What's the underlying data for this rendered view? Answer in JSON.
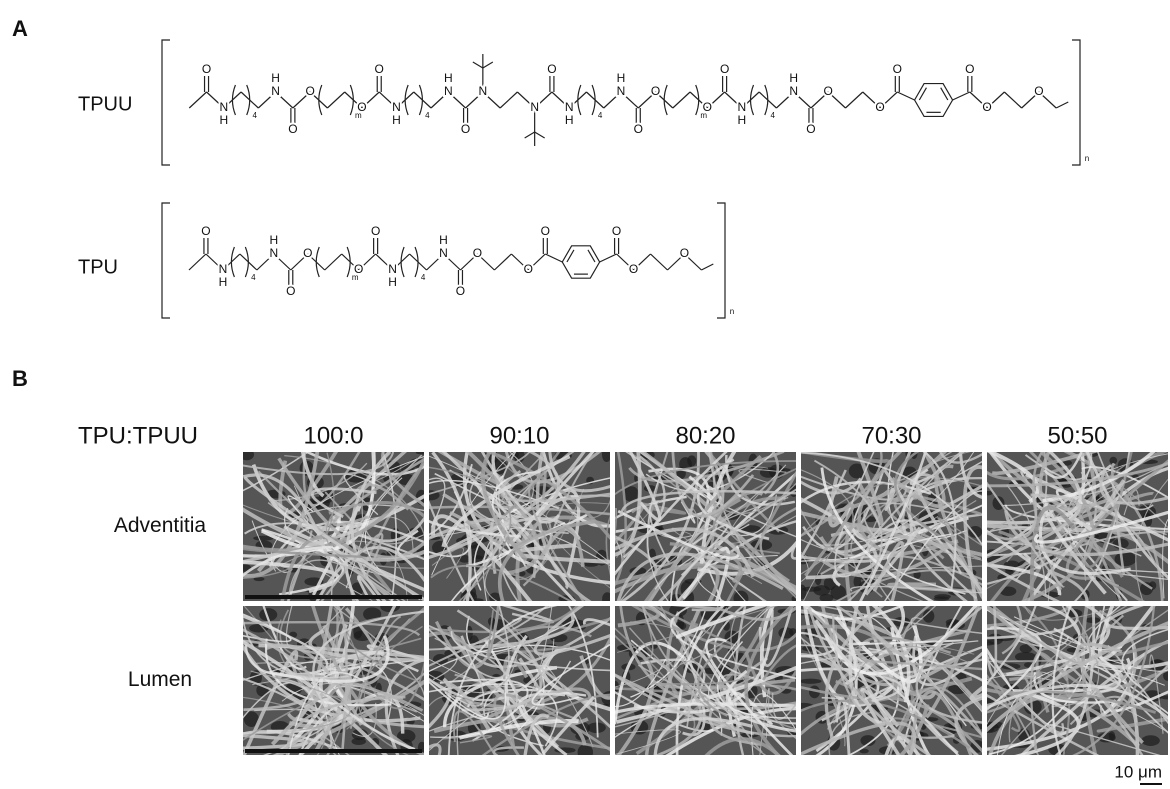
{
  "panel_a": {
    "label": "A",
    "structures": [
      {
        "name": "TPUU",
        "atoms": [
          "O",
          "N",
          "H",
          "4",
          "N",
          "H",
          "O",
          "O",
          "O",
          "m",
          "O",
          "N",
          "H",
          "4",
          "N",
          "H",
          "O",
          "N",
          "N",
          "O",
          "N",
          "H",
          "4",
          "N",
          "H",
          "O",
          "O",
          "O",
          "m",
          "O",
          "N",
          "H",
          "4",
          "N",
          "H",
          "O",
          "O",
          "O",
          "O",
          "O",
          "O",
          "O"
        ],
        "repeat": "n"
      },
      {
        "name": "TPU",
        "atoms": [
          "O",
          "N",
          "H",
          "4",
          "N",
          "H",
          "O",
          "O",
          "O",
          "m",
          "O",
          "N",
          "H",
          "4",
          "N",
          "H",
          "O",
          "O",
          "O",
          "O",
          "O",
          "O",
          "O"
        ],
        "repeat": "n"
      }
    ]
  },
  "panel_b": {
    "label": "B",
    "column_header": "TPU:TPUU",
    "columns": [
      "100:0",
      "90:10",
      "80:20",
      "70:30",
      "50:50"
    ],
    "rows": [
      "Adventitia",
      "Lumen"
    ],
    "scale_bar": "10 μm"
  }
}
